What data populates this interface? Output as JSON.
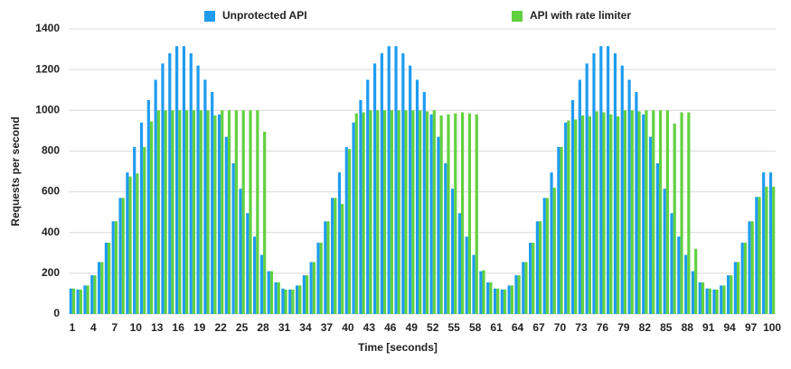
{
  "chart_data": {
    "type": "bar",
    "xlabel": "Time [seconds]",
    "ylabel": "Requests per second",
    "categories": [
      "1",
      null,
      null,
      "4",
      null,
      null,
      "7",
      null,
      null,
      "10",
      null,
      null,
      "13",
      null,
      null,
      "16",
      null,
      null,
      "19",
      null,
      null,
      "22",
      null,
      null,
      "25",
      null,
      null,
      "28",
      null,
      null,
      "31",
      null,
      null,
      "34",
      null,
      null,
      "37",
      null,
      null,
      "40",
      null,
      null,
      "43",
      null,
      null,
      "46",
      null,
      null,
      "49",
      null,
      null,
      "52",
      null,
      null,
      "55",
      null,
      null,
      "58",
      null,
      null,
      "61",
      null,
      null,
      "64",
      null,
      null,
      "67",
      null,
      null,
      "70",
      null,
      null,
      "73",
      null,
      null,
      "76",
      null,
      null,
      "79",
      null,
      null,
      "82",
      null,
      null,
      "85",
      null,
      null,
      "88",
      null,
      null,
      "91",
      null,
      null,
      "94",
      null,
      null,
      "97",
      null,
      null,
      "100"
    ],
    "series": [
      {
        "name": "Unprotected API",
        "color": "#1f9cf0",
        "values": [
          125,
          120,
          140,
          190,
          255,
          350,
          455,
          570,
          695,
          820,
          940,
          1050,
          1150,
          1230,
          1280,
          1315,
          1315,
          1280,
          1220,
          1150,
          1090,
          980,
          870,
          740,
          615,
          495,
          380,
          290,
          210,
          155,
          125,
          120,
          140,
          190,
          255,
          350,
          455,
          570,
          695,
          820,
          940,
          1050,
          1150,
          1230,
          1280,
          1315,
          1315,
          1280,
          1220,
          1150,
          1090,
          980,
          870,
          740,
          615,
          495,
          380,
          290,
          210,
          155,
          125,
          120,
          140,
          190,
          255,
          350,
          455,
          570,
          695,
          820,
          940,
          1050,
          1150,
          1230,
          1280,
          1315,
          1315,
          1280,
          1220,
          1150,
          1090,
          980,
          870,
          740,
          615,
          495,
          380,
          290,
          210,
          155,
          125,
          120,
          140,
          190,
          255,
          350,
          455,
          575,
          695,
          695
        ]
      },
      {
        "name": "API with rate limiter",
        "color": "#62d13f",
        "values": [
          125,
          120,
          140,
          190,
          255,
          350,
          455,
          570,
          675,
          690,
          820,
          945,
          1000,
          1000,
          1000,
          1000,
          1000,
          1000,
          1000,
          1000,
          975,
          1000,
          1000,
          1000,
          1000,
          1000,
          1000,
          895,
          210,
          155,
          120,
          120,
          140,
          190,
          255,
          350,
          455,
          570,
          540,
          810,
          985,
          990,
          1000,
          1000,
          1000,
          1000,
          1000,
          1000,
          1000,
          1000,
          995,
          1000,
          975,
          980,
          985,
          990,
          985,
          980,
          215,
          155,
          125,
          120,
          140,
          190,
          255,
          350,
          455,
          570,
          620,
          820,
          950,
          955,
          975,
          970,
          995,
          990,
          980,
          970,
          1000,
          1000,
          995,
          1000,
          1000,
          1000,
          1000,
          935,
          990,
          990,
          320,
          155,
          125,
          120,
          140,
          190,
          255,
          350,
          455,
          575,
          625,
          625
        ]
      }
    ],
    "ylim": [
      0,
      1400
    ],
    "yticks": [
      0,
      200,
      400,
      600,
      800,
      1000,
      1200,
      1400
    ],
    "grid": true,
    "legend": "top"
  }
}
